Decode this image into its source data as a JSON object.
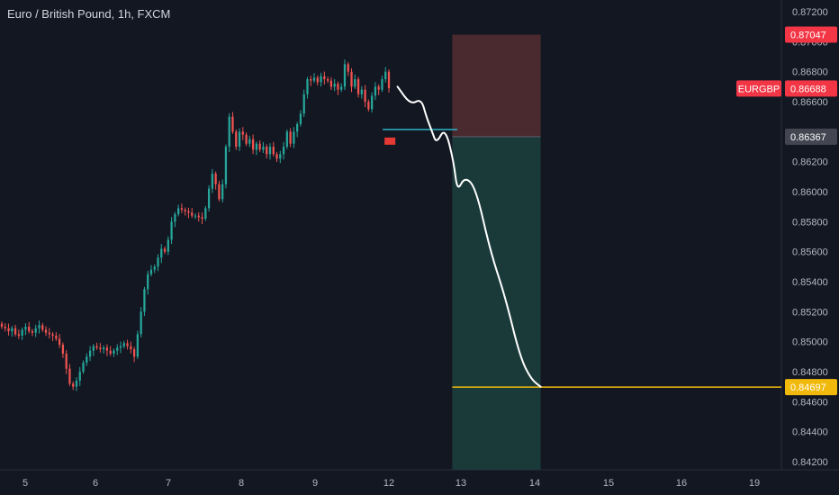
{
  "header": {
    "title": "Euro / British Pound, 1h, FXCM"
  },
  "chart_data": {
    "type": "candlestick",
    "symbol": "EURGBP",
    "interval": "1h",
    "y_ticks": [
      "0.87200",
      "0.87000",
      "0.86800",
      "0.86600",
      "0.86400",
      "0.86200",
      "0.86000",
      "0.85800",
      "0.85600",
      "0.85400",
      "0.85200",
      "0.85000",
      "0.84800",
      "0.84600",
      "0.84400",
      "0.84200"
    ],
    "x_ticks": [
      "5",
      "6",
      "7",
      "8",
      "9",
      "12",
      "13",
      "14",
      "15",
      "16",
      "19"
    ],
    "ylim": [
      0.8413,
      0.8727
    ],
    "colors": {
      "up": "#26a69a",
      "down": "#ef5350",
      "bg": "#131722",
      "grid": "#2a2e39",
      "stop_zone": "#4a2a2e",
      "target_zone": "#1a3a3a",
      "target_line": "#f0b90b",
      "entry_line": "#2bb3c6",
      "path": "#ffffff"
    },
    "closes": [
      0.851,
      0.8509,
      0.8507,
      0.8509,
      0.8505,
      0.8504,
      0.8508,
      0.851,
      0.8507,
      0.8506,
      0.8509,
      0.8511,
      0.8508,
      0.8506,
      0.8505,
      0.8504,
      0.8502,
      0.8498,
      0.8492,
      0.8482,
      0.8472,
      0.847,
      0.8474,
      0.848,
      0.8486,
      0.849,
      0.8494,
      0.8497,
      0.8496,
      0.8495,
      0.8496,
      0.8494,
      0.8492,
      0.8494,
      0.8496,
      0.8497,
      0.8499,
      0.8497,
      0.8495,
      0.849,
      0.8505,
      0.852,
      0.8535,
      0.8545,
      0.8548,
      0.855,
      0.8556,
      0.8562,
      0.856,
      0.8568,
      0.858,
      0.8585,
      0.8589,
      0.8588,
      0.8587,
      0.8586,
      0.8584,
      0.8584,
      0.8583,
      0.8582,
      0.8589,
      0.8602,
      0.8612,
      0.8605,
      0.8595,
      0.8605,
      0.863,
      0.865,
      0.864,
      0.863,
      0.864,
      0.8638,
      0.8632,
      0.8635,
      0.8628,
      0.8632,
      0.8628,
      0.863,
      0.8625,
      0.863,
      0.8625,
      0.8622,
      0.8625,
      0.863,
      0.864,
      0.8632,
      0.864,
      0.8645,
      0.8652,
      0.8665,
      0.8675,
      0.8674,
      0.8676,
      0.8673,
      0.8677,
      0.8675,
      0.8674,
      0.867,
      0.8672,
      0.8668,
      0.867,
      0.8685,
      0.868,
      0.867,
      0.8675,
      0.8665,
      0.8668,
      0.866,
      0.8655,
      0.8664,
      0.867,
      0.8668,
      0.8675,
      0.868,
      0.8669
    ],
    "current_price": {
      "label": "EURGBP",
      "value": "0.86688"
    },
    "position": {
      "stop_price": "0.87047",
      "entry_price": "0.86367",
      "target_price": "0.84697",
      "start_x": "12.88",
      "end_x": "14.08",
      "entry_line_x": [
        "11.75",
        "12.95"
      ]
    },
    "projected_path": [
      [
        12.12,
        0.867
      ],
      [
        12.3,
        0.8658
      ],
      [
        12.45,
        0.8662
      ],
      [
        12.52,
        0.865
      ],
      [
        12.6,
        0.864
      ],
      [
        12.66,
        0.8632
      ],
      [
        12.78,
        0.8643
      ],
      [
        12.9,
        0.862
      ],
      [
        12.95,
        0.86
      ],
      [
        13.05,
        0.861
      ],
      [
        13.2,
        0.8603
      ],
      [
        13.4,
        0.856
      ],
      [
        13.6,
        0.853
      ],
      [
        13.8,
        0.849
      ],
      [
        13.95,
        0.8475
      ],
      [
        14.08,
        0.847
      ]
    ]
  }
}
